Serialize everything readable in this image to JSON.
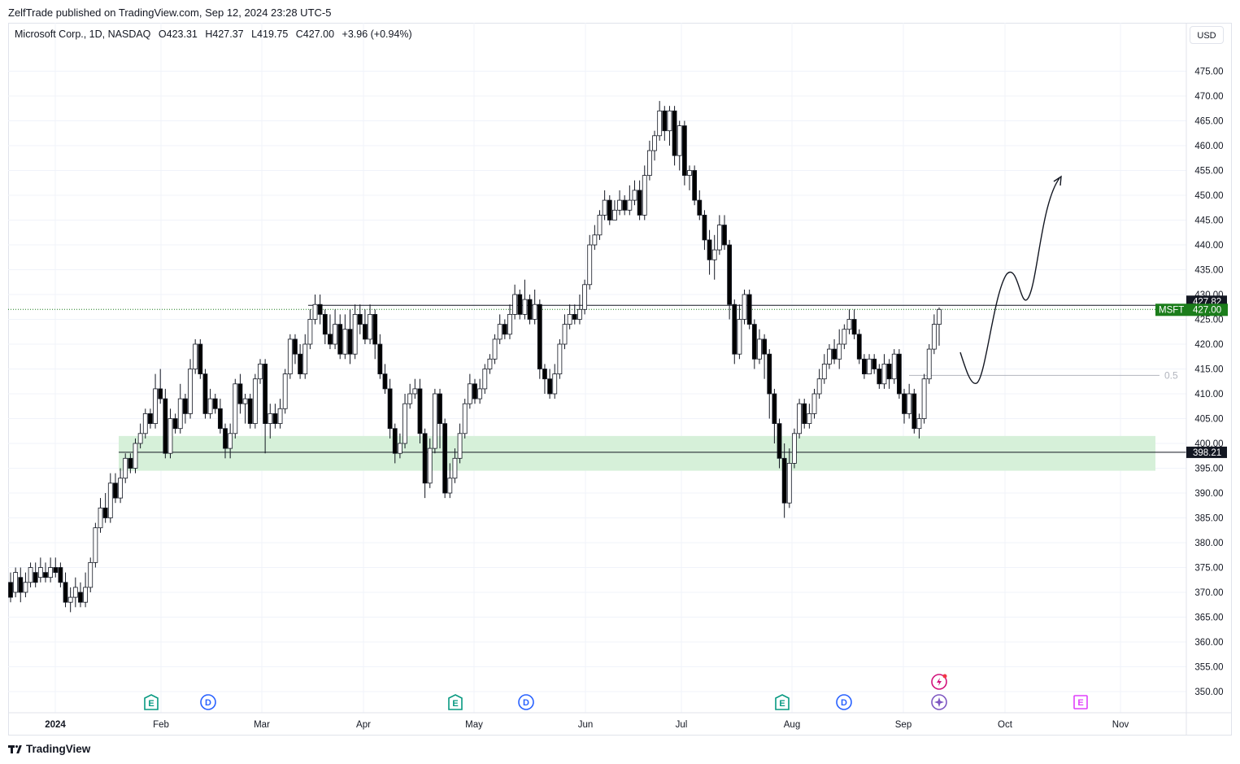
{
  "header": {
    "publisher": "ZelfTrade published on TradingView.com, Sep 12, 2024 23:28 UTC-5",
    "symbol_info": "Microsoft Corp., 1D, NASDAQ",
    "open": "O423.31",
    "high": "H427.37",
    "low": "L419.75",
    "close": "C427.00",
    "change": "+3.96 (+0.94%)",
    "currency": "USD"
  },
  "footer": {
    "brand": "TradingView"
  },
  "colors": {
    "down": "#000000",
    "up_fill": "#ffffff",
    "zone": "#d6f0d9",
    "price_tag": "#1b7d1b",
    "grid": "#f0f3fa"
  },
  "chart_data": {
    "type": "candlestick",
    "y_ticks": [
      "350.00",
      "355.00",
      "360.00",
      "365.00",
      "370.00",
      "375.00",
      "380.00",
      "385.00",
      "390.00",
      "395.00",
      "400.00",
      "405.00",
      "410.00",
      "415.00",
      "420.00",
      "425.00",
      "430.00",
      "435.00",
      "440.00",
      "445.00",
      "450.00",
      "455.00",
      "460.00",
      "465.00",
      "470.00",
      "475.00"
    ],
    "x_labels": [
      "2024",
      "Feb",
      "Mar",
      "Apr",
      "May",
      "Jun",
      "Jul",
      "Aug",
      "Sep",
      "Oct",
      "Nov"
    ],
    "ylim": [
      345,
      480
    ],
    "last_price": {
      "symbol": "MSFT",
      "value": "427.00"
    },
    "resistance": "427.82",
    "support": "398.21",
    "fib_label": "0.5",
    "zone": [
      394.5,
      401.5
    ],
    "candles": [
      [
        372,
        369,
        374,
        368
      ],
      [
        370,
        374,
        375,
        369
      ],
      [
        373,
        370,
        375,
        368
      ],
      [
        370,
        372,
        374,
        369
      ],
      [
        372,
        375,
        376,
        371
      ],
      [
        374,
        372,
        376,
        371
      ],
      [
        373,
        375,
        377,
        372
      ],
      [
        374,
        373,
        376,
        372
      ],
      [
        373,
        375,
        377,
        372
      ],
      [
        375,
        374,
        377,
        373
      ],
      [
        375,
        372,
        376,
        371
      ],
      [
        372,
        368,
        374,
        367
      ],
      [
        368,
        369,
        371,
        366
      ],
      [
        369,
        371,
        373,
        367
      ],
      [
        370,
        368,
        372,
        367
      ],
      [
        368,
        371,
        374,
        367
      ],
      [
        371,
        376,
        377,
        370
      ],
      [
        376,
        383,
        384,
        375
      ],
      [
        383,
        387,
        389,
        382
      ],
      [
        387,
        385,
        390,
        384
      ],
      [
        385,
        392,
        394,
        384
      ],
      [
        392,
        389,
        394,
        388
      ],
      [
        389,
        393,
        395,
        388
      ],
      [
        393,
        397,
        398,
        392
      ],
      [
        397,
        395,
        398,
        394
      ],
      [
        395,
        400,
        401,
        394
      ],
      [
        400,
        402,
        404,
        399
      ],
      [
        402,
        406,
        407,
        401
      ],
      [
        406,
        404,
        407,
        403
      ],
      [
        404,
        411,
        414,
        403
      ],
      [
        411,
        409,
        415,
        408
      ],
      [
        409,
        398,
        411,
        397
      ],
      [
        398,
        405,
        407,
        397
      ],
      [
        405,
        403,
        406,
        402
      ],
      [
        403,
        409,
        412,
        402
      ],
      [
        409,
        406,
        410,
        404
      ],
      [
        406,
        415,
        417,
        405
      ],
      [
        415,
        420,
        421,
        414
      ],
      [
        420,
        414,
        421,
        413
      ],
      [
        414,
        406,
        415,
        405
      ],
      [
        406,
        409,
        411,
        405
      ],
      [
        409,
        407,
        410,
        406
      ],
      [
        407,
        403,
        409,
        402
      ],
      [
        403,
        399,
        404,
        397
      ],
      [
        399,
        402,
        404,
        397
      ],
      [
        402,
        412,
        413,
        401
      ],
      [
        412,
        408,
        414,
        406
      ],
      [
        408,
        409,
        410,
        404
      ],
      [
        409,
        404,
        410,
        403
      ],
      [
        404,
        413,
        414,
        403
      ],
      [
        413,
        416,
        417,
        412
      ],
      [
        416,
        404,
        417,
        398
      ],
      [
        404,
        406,
        408,
        401
      ],
      [
        406,
        404,
        408,
        403
      ],
      [
        404,
        407,
        409,
        403
      ],
      [
        407,
        414,
        415,
        406
      ],
      [
        414,
        421,
        422,
        413
      ],
      [
        421,
        418,
        422,
        416
      ],
      [
        418,
        414,
        420,
        413
      ],
      [
        414,
        420,
        422,
        413
      ],
      [
        420,
        425,
        427,
        419
      ],
      [
        425,
        428,
        430,
        424
      ],
      [
        428,
        426,
        430,
        424
      ],
      [
        426,
        422,
        427,
        420
      ],
      [
        422,
        420,
        426,
        419
      ],
      [
        420,
        424,
        427,
        419
      ],
      [
        424,
        418,
        426,
        417
      ],
      [
        418,
        423,
        426,
        417
      ],
      [
        423,
        418,
        427,
        416
      ],
      [
        418,
        426,
        428,
        417
      ],
      [
        426,
        424,
        428,
        422
      ],
      [
        424,
        421,
        427,
        420
      ],
      [
        421,
        426,
        428,
        420
      ],
      [
        426,
        420,
        427,
        417
      ],
      [
        420,
        414,
        422,
        413
      ],
      [
        414,
        411,
        416,
        410
      ],
      [
        411,
        403,
        413,
        401
      ],
      [
        403,
        398,
        404,
        396
      ],
      [
        398,
        400,
        402,
        397
      ],
      [
        400,
        408,
        410,
        399
      ],
      [
        408,
        410,
        412,
        407
      ],
      [
        410,
        411,
        413,
        409
      ],
      [
        411,
        402,
        413,
        400
      ],
      [
        402,
        392,
        403,
        389
      ],
      [
        392,
        399,
        401,
        391
      ],
      [
        399,
        410,
        411,
        398
      ],
      [
        410,
        404,
        411,
        399
      ],
      [
        404,
        390,
        405,
        389
      ],
      [
        390,
        393,
        396,
        389
      ],
      [
        393,
        397,
        399,
        392
      ],
      [
        397,
        402,
        404,
        396
      ],
      [
        402,
        408,
        409,
        401
      ],
      [
        408,
        412,
        414,
        407
      ],
      [
        412,
        409,
        413,
        408
      ],
      [
        409,
        411,
        413,
        408
      ],
      [
        411,
        415,
        416,
        410
      ],
      [
        415,
        417,
        418,
        414
      ],
      [
        417,
        421,
        422,
        416
      ],
      [
        421,
        424,
        426,
        420
      ],
      [
        424,
        422,
        425,
        421
      ],
      [
        422,
        426,
        428,
        421
      ],
      [
        426,
        430,
        432,
        425
      ],
      [
        430,
        426,
        431,
        425
      ],
      [
        426,
        429,
        433,
        425
      ],
      [
        429,
        425,
        430,
        424
      ],
      [
        425,
        428,
        431,
        424
      ],
      [
        428,
        415,
        429,
        413
      ],
      [
        415,
        413,
        416,
        410
      ],
      [
        413,
        410,
        415,
        409
      ],
      [
        410,
        414,
        416,
        409
      ],
      [
        414,
        420,
        421,
        413
      ],
      [
        420,
        424,
        426,
        419
      ],
      [
        424,
        426,
        428,
        423
      ],
      [
        426,
        425,
        428,
        424
      ],
      [
        425,
        427,
        430,
        424
      ],
      [
        427,
        432,
        433,
        426
      ],
      [
        432,
        440,
        442,
        431
      ],
      [
        440,
        442,
        444,
        439
      ],
      [
        442,
        446,
        447,
        441
      ],
      [
        446,
        449,
        451,
        445
      ],
      [
        449,
        445,
        450,
        444
      ],
      [
        445,
        447,
        449,
        445
      ],
      [
        447,
        449,
        451,
        446
      ],
      [
        449,
        447,
        450,
        446
      ],
      [
        447,
        449,
        452,
        446
      ],
      [
        449,
        451,
        453,
        448
      ],
      [
        451,
        446,
        453,
        445
      ],
      [
        446,
        454,
        456,
        445
      ],
      [
        454,
        459,
        461,
        453
      ],
      [
        459,
        462,
        463,
        457
      ],
      [
        462,
        467,
        469,
        461
      ],
      [
        467,
        463,
        468,
        461
      ],
      [
        463,
        467,
        468,
        460
      ],
      [
        467,
        458,
        468,
        456
      ],
      [
        458,
        464,
        465,
        455
      ],
      [
        464,
        454,
        465,
        452
      ],
      [
        454,
        455,
        456,
        451
      ],
      [
        455,
        449,
        456,
        448
      ],
      [
        449,
        446,
        451,
        445
      ],
      [
        446,
        441,
        447,
        439
      ],
      [
        441,
        437,
        443,
        434
      ],
      [
        437,
        439,
        442,
        433
      ],
      [
        439,
        444,
        446,
        438
      ],
      [
        444,
        440,
        446,
        439
      ],
      [
        440,
        428,
        441,
        425
      ],
      [
        428,
        418,
        429,
        416
      ],
      [
        418,
        425,
        428,
        417
      ],
      [
        425,
        430,
        431,
        424
      ],
      [
        430,
        424,
        431,
        423
      ],
      [
        424,
        417,
        425,
        415
      ],
      [
        417,
        421,
        423,
        416
      ],
      [
        421,
        418,
        422,
        413
      ],
      [
        418,
        410,
        419,
        405
      ],
      [
        410,
        404,
        411,
        400
      ],
      [
        404,
        397,
        405,
        395
      ],
      [
        397,
        388,
        400,
        385
      ],
      [
        388,
        396,
        399,
        387
      ],
      [
        396,
        402,
        403,
        395
      ],
      [
        402,
        408,
        409,
        401
      ],
      [
        408,
        404,
        409,
        403
      ],
      [
        404,
        406,
        408,
        403
      ],
      [
        406,
        410,
        411,
        405
      ],
      [
        410,
        413,
        415,
        409
      ],
      [
        413,
        416,
        418,
        412
      ],
      [
        416,
        419,
        420,
        415
      ],
      [
        419,
        417,
        421,
        416
      ],
      [
        417,
        420,
        423,
        415
      ],
      [
        420,
        423,
        424,
        419
      ],
      [
        423,
        425,
        427,
        422
      ],
      [
        425,
        422,
        427,
        421
      ],
      [
        422,
        417,
        423,
        416
      ],
      [
        417,
        414,
        418,
        413
      ],
      [
        414,
        417,
        418,
        414
      ],
      [
        417,
        415,
        418,
        414
      ],
      [
        415,
        412,
        416,
        411
      ],
      [
        412,
        416,
        418,
        411
      ],
      [
        416,
        413,
        417,
        411
      ],
      [
        413,
        418,
        419,
        412
      ],
      [
        418,
        410,
        419,
        409
      ],
      [
        410,
        406,
        411,
        404
      ],
      [
        406,
        410,
        412,
        405
      ],
      [
        410,
        403,
        411,
        402
      ],
      [
        403,
        405,
        406,
        401
      ],
      [
        405,
        413,
        414,
        404
      ],
      [
        413,
        419,
        420,
        412
      ],
      [
        419,
        424,
        426,
        418
      ],
      [
        424,
        427,
        427.4,
        419.7
      ]
    ]
  }
}
